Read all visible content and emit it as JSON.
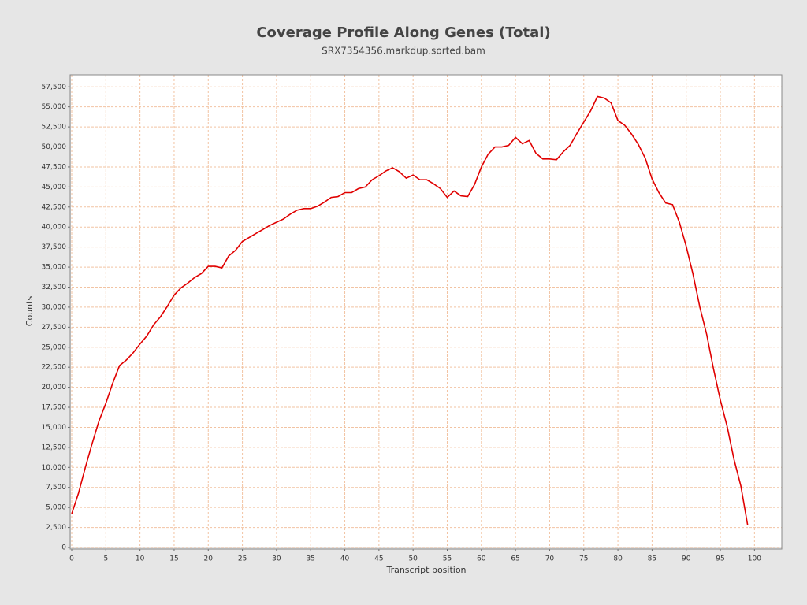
{
  "chart_data": {
    "type": "line",
    "title": "Coverage Profile Along Genes (Total)",
    "subtitle": "SRX7354356.markdup.sorted.bam",
    "xlabel": "Transcript position",
    "ylabel": "Counts",
    "color": "#e00000",
    "grid": true,
    "x": [
      0,
      1,
      2,
      3,
      4,
      5,
      6,
      7,
      8,
      9,
      10,
      11,
      12,
      13,
      14,
      15,
      16,
      17,
      18,
      19,
      20,
      21,
      22,
      23,
      24,
      25,
      26,
      27,
      28,
      29,
      30,
      31,
      32,
      33,
      34,
      35,
      36,
      37,
      38,
      39,
      40,
      41,
      42,
      43,
      44,
      45,
      46,
      47,
      48,
      49,
      50,
      51,
      52,
      53,
      54,
      55,
      56,
      57,
      58,
      59,
      60,
      61,
      62,
      63,
      64,
      65,
      66,
      67,
      68,
      69,
      70,
      71,
      72,
      73,
      74,
      75,
      76,
      77,
      78,
      79,
      80,
      81,
      82,
      83,
      84,
      85,
      86,
      87,
      88,
      89,
      90,
      91,
      92,
      93,
      94,
      95,
      96,
      97,
      98,
      99
    ],
    "values": [
      4200,
      6800,
      10000,
      13000,
      15800,
      18000,
      20500,
      22700,
      23400,
      24300,
      25400,
      26400,
      27800,
      28800,
      30100,
      31500,
      32400,
      33000,
      33700,
      34200,
      35100,
      35100,
      34900,
      36400,
      37100,
      38200,
      38700,
      39200,
      39700,
      40200,
      40600,
      41000,
      41600,
      42100,
      42300,
      42300,
      42600,
      43100,
      43700,
      43800,
      44300,
      44300,
      44800,
      45000,
      45900,
      46400,
      47000,
      47400,
      46900,
      46100,
      46500,
      45900,
      45900,
      45400,
      44800,
      43700,
      44500,
      43900,
      43800,
      45300,
      47500,
      49100,
      50000,
      50000,
      50200,
      51200,
      50400,
      50800,
      49200,
      48500,
      48500,
      48400,
      49400,
      50200,
      51700,
      53100,
      54500,
      56300,
      56100,
      55500,
      53300,
      52700,
      51600,
      50300,
      48600,
      46000,
      44300,
      43000,
      42800,
      40600,
      37600,
      34100,
      30000,
      26600,
      22300,
      18400,
      15100,
      11000,
      7700,
      2800
    ],
    "xlim": [
      0,
      104
    ],
    "xticks": [
      0,
      5,
      10,
      15,
      20,
      25,
      30,
      35,
      40,
      45,
      50,
      55,
      60,
      65,
      70,
      75,
      80,
      85,
      90,
      95,
      100
    ],
    "ylim": [
      0,
      59000
    ],
    "yticks": [
      0,
      {
        "value": 2500,
        "label": "2,500"
      },
      {
        "value": 5000,
        "label": "5,000"
      },
      {
        "value": 7500,
        "label": "7,500"
      },
      {
        "value": 10000,
        "label": "10,000"
      },
      {
        "value": 12500,
        "label": "12,500"
      },
      {
        "value": 15000,
        "label": "15,000"
      },
      {
        "value": 17500,
        "label": "17,500"
      },
      {
        "value": 20000,
        "label": "20,000"
      },
      {
        "value": 22500,
        "label": "22,500"
      },
      {
        "value": 25000,
        "label": "25,000"
      },
      {
        "value": 27500,
        "label": "27,500"
      },
      {
        "value": 30000,
        "label": "30,000"
      },
      {
        "value": 32500,
        "label": "32,500"
      },
      {
        "value": 35000,
        "label": "35,000"
      },
      {
        "value": 37500,
        "label": "37,500"
      },
      {
        "value": 40000,
        "label": "40,000"
      },
      {
        "value": 42500,
        "label": "42,500"
      },
      {
        "value": 45000,
        "label": "45,000"
      },
      {
        "value": 47500,
        "label": "47,500"
      },
      {
        "value": 50000,
        "label": "50,000"
      },
      {
        "value": 52500,
        "label": "52,500"
      },
      {
        "value": 55000,
        "label": "55,000"
      },
      {
        "value": 57500,
        "label": "57,500"
      }
    ]
  }
}
